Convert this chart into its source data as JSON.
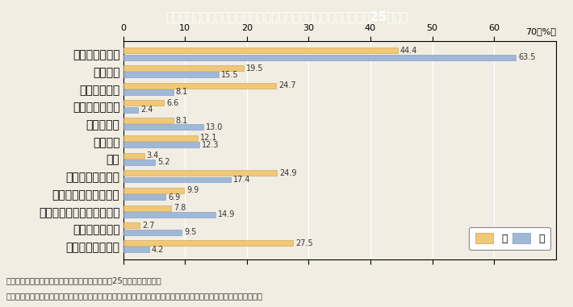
{
  "title": "Ｉ－４－４図　婚姻関係事件における申立ての動機別割合（平成25年度）",
  "title_bg_color": "#30b8cc",
  "title_text_color": "#ffffff",
  "chart_bg_color": "#f2ede3",
  "outer_bg_color": "#f2ede3",
  "categories": [
    "性格が合わない",
    "異性関係",
    "暴力を振るう",
    "酒を飲み過ぎる",
    "性的不調和",
    "浪費する",
    "病気",
    "精神的に虐待する",
    "家庭を捨てて省みない",
    "家族親族と折り合いが悪い",
    "同居に応じない",
    "生活費を渡さない"
  ],
  "wife_values": [
    44.4,
    19.5,
    24.7,
    6.6,
    8.1,
    12.1,
    3.4,
    24.9,
    9.9,
    7.8,
    2.7,
    27.5
  ],
  "husband_values": [
    63.5,
    15.5,
    8.1,
    2.4,
    13.0,
    12.3,
    5.2,
    17.4,
    6.9,
    14.9,
    9.5,
    4.2
  ],
  "wife_color": "#f0c878",
  "husband_color": "#a0b8d8",
  "xlim": [
    0,
    70
  ],
  "xticks": [
    0,
    10,
    20,
    30,
    40,
    50,
    60
  ],
  "legend_labels": [
    "妻",
    "夫"
  ],
  "footnote1": "（備考）１．最高裁判所「司法統計年報」（平成25年度）より作成。",
  "footnote2": "　　　　２．申立ての動機は，申立人の言う動機のうち主なものを３個まで挙げる方法で調査し，重複集計したもの。",
  "font_size_title": 10.5,
  "font_size_label": 8,
  "font_size_value": 7,
  "font_size_tick": 8,
  "font_size_footnote": 7.2,
  "font_size_legend": 9
}
